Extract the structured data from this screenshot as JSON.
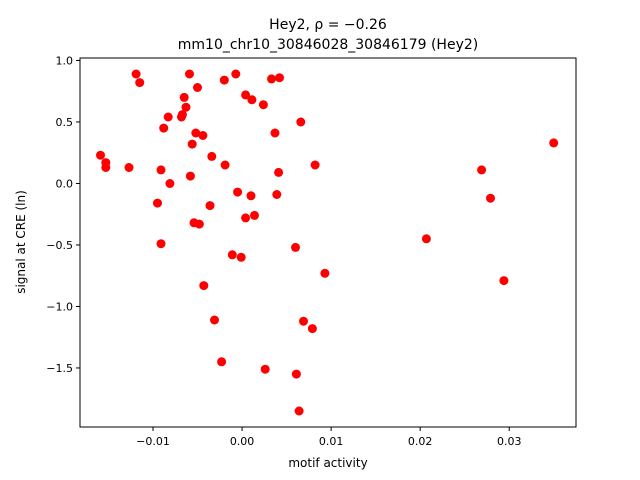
{
  "chart_data": {
    "type": "scatter",
    "title_line1": "Hey2, ρ = −0.26",
    "title_line2": "mm10_chr10_30846028_30846179 (Hey2)",
    "xlabel": "motif activity",
    "ylabel": "signal at CRE (ln)",
    "xlim": [
      -0.0182,
      0.0375
    ],
    "ylim": [
      -1.98,
      1.02
    ],
    "xticks": [
      -0.01,
      0.0,
      0.01,
      0.02,
      0.03
    ],
    "xtick_labels": [
      "−0.01",
      "0.00",
      "0.01",
      "0.02",
      "0.03"
    ],
    "yticks": [
      -1.5,
      -1.0,
      -0.5,
      0.0,
      0.5,
      1.0
    ],
    "ytick_labels": [
      "−1.5",
      "−1.0",
      "−0.5",
      "0.0",
      "0.5",
      "1.0"
    ],
    "grid": false,
    "marker_color": "#ff0000",
    "series": [
      {
        "points": [
          [
            -0.0159,
            0.23
          ],
          [
            -0.0153,
            0.17
          ],
          [
            -0.0153,
            0.13
          ],
          [
            -0.0127,
            0.13
          ],
          [
            -0.0119,
            0.89
          ],
          [
            -0.0115,
            0.82
          ],
          [
            -0.0095,
            -0.16
          ],
          [
            -0.0091,
            0.11
          ],
          [
            -0.0091,
            -0.49
          ],
          [
            -0.0088,
            0.45
          ],
          [
            -0.0083,
            0.54
          ],
          [
            -0.0081,
            0.0
          ],
          [
            -0.0068,
            0.54
          ],
          [
            -0.0067,
            0.56
          ],
          [
            -0.0065,
            0.7
          ],
          [
            -0.0063,
            0.62
          ],
          [
            -0.0059,
            0.89
          ],
          [
            -0.0058,
            0.06
          ],
          [
            -0.0056,
            0.32
          ],
          [
            -0.0054,
            -0.32
          ],
          [
            -0.0052,
            0.41
          ],
          [
            -0.005,
            0.78
          ],
          [
            -0.0048,
            -0.33
          ],
          [
            -0.0044,
            0.39
          ],
          [
            -0.0043,
            -0.83
          ],
          [
            -0.0036,
            -0.18
          ],
          [
            -0.0034,
            0.22
          ],
          [
            -0.0031,
            -1.11
          ],
          [
            -0.0023,
            -1.45
          ],
          [
            -0.002,
            0.84
          ],
          [
            -0.0019,
            0.15
          ],
          [
            -0.0011,
            -0.58
          ],
          [
            -0.0007,
            0.89
          ],
          [
            -0.0005,
            -0.07
          ],
          [
            -0.0001,
            -0.6
          ],
          [
            0.0004,
            -0.28
          ],
          [
            0.0004,
            0.72
          ],
          [
            0.001,
            -0.1
          ],
          [
            0.0011,
            0.68
          ],
          [
            0.0014,
            -0.26
          ],
          [
            0.0024,
            0.64
          ],
          [
            0.0026,
            -1.51
          ],
          [
            0.0033,
            0.85
          ],
          [
            0.0037,
            0.41
          ],
          [
            0.0039,
            -0.09
          ],
          [
            0.0041,
            0.09
          ],
          [
            0.0042,
            0.86
          ],
          [
            0.006,
            -0.52
          ],
          [
            0.0061,
            -1.55
          ],
          [
            0.0064,
            -1.85
          ],
          [
            0.0066,
            0.5
          ],
          [
            0.0069,
            -1.12
          ],
          [
            0.0079,
            -1.18
          ],
          [
            0.0082,
            0.15
          ],
          [
            0.0093,
            -0.73
          ],
          [
            0.0207,
            -0.45
          ],
          [
            0.0269,
            0.11
          ],
          [
            0.0279,
            -0.12
          ],
          [
            0.0294,
            -0.79
          ],
          [
            0.035,
            0.33
          ]
        ]
      }
    ]
  }
}
